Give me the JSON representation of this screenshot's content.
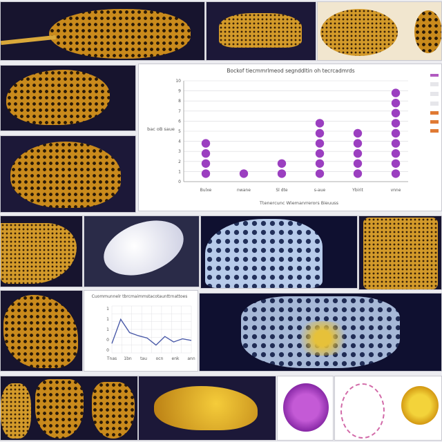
{
  "chart_data": [
    {
      "type": "scatter",
      "title": "Bockof tiecmmrlmeod segnddltin oh tecrcadmrds",
      "xlabel": "Ttenercunc Wiemanrrerors Bieuuss",
      "ylabel": "bac oB saue",
      "categories": [
        "Bulxe",
        "nwane",
        "Sl dte",
        "s-aue",
        "Ybirit",
        "vnne"
      ],
      "values": [
        4,
        1,
        2,
        6,
        5,
        9
      ],
      "ylim": [
        0,
        10
      ],
      "y_ticks": [
        "0",
        "1",
        "2",
        "3",
        "4",
        "5",
        "6",
        "7",
        "8",
        "9",
        "10"
      ],
      "grid": true,
      "marker_color": "#9b3fc0"
    },
    {
      "type": "line",
      "title": "Cuommunnelr tbrcmaimmstacotaunttrnattoes",
      "y_ticks": [
        "1",
        "1",
        "1",
        "0",
        "0"
      ],
      "x_ticks": [
        "Tnas",
        "1bn",
        "tau",
        "ocn",
        "enk",
        "ann"
      ],
      "values": [
        1.2,
        4.3,
        2.6,
        2.2,
        1.9,
        1.0,
        2.1,
        1.4,
        1.8,
        1.6
      ],
      "ylim": [
        0,
        6
      ],
      "grid": true,
      "line_color": "#4a5aa8"
    }
  ],
  "colors": {
    "gold": "#c98a1c",
    "blue": "#b7cbea",
    "purple": "#9b3fc0",
    "dark": "#17142e"
  }
}
